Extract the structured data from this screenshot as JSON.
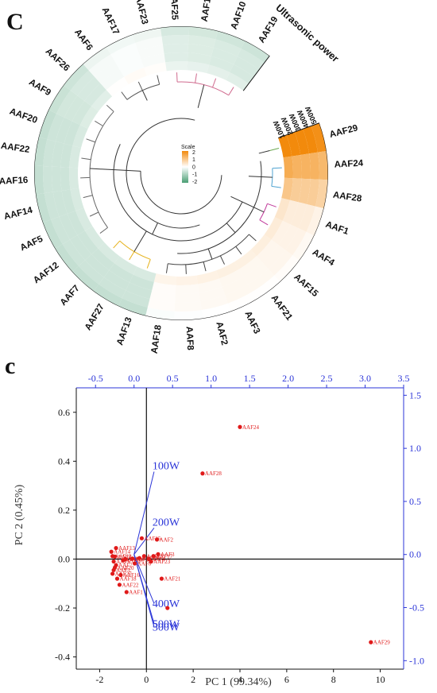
{
  "panel_top_letter": "C",
  "panel_bottom_letter": "c",
  "chart_data": [
    {
      "type": "heatmap",
      "layout": "circular",
      "title": "Ultrasonic power",
      "samples": [
        "AAF29",
        "AAF24",
        "AAF28",
        "AAF1",
        "AAF4",
        "AAF15",
        "AAF21",
        "AAF3",
        "AAF2",
        "AAF8",
        "AAF18",
        "AAF13",
        "AAF27",
        "AAF7",
        "AAF12",
        "AAF5",
        "AAF14",
        "AAF16",
        "AAF22",
        "AAF20",
        "AAF9",
        "AAF26",
        "AAF6",
        "AAF17",
        "AAF23",
        "AAF25",
        "AAF11",
        "AAF10",
        "AAF19"
      ],
      "rings": [
        "100W",
        "200W",
        "300W",
        "400W",
        "500W"
      ],
      "row_level": [
        2.0,
        1.3,
        0.85,
        0.3,
        0.2,
        0.15,
        0.12,
        0.12,
        0.1,
        0.08,
        0.05,
        -0.55,
        -0.55,
        -0.55,
        -0.55,
        -0.55,
        -0.55,
        -0.55,
        -0.55,
        -0.55,
        -0.5,
        -0.45,
        -0.1,
        -0.05,
        -0.08,
        -0.35,
        -0.38,
        -0.42,
        -0.45
      ],
      "scale": {
        "label": "Scale",
        "ticks": [
          "2",
          "1",
          "0",
          "-1",
          "-2"
        ],
        "min": -2,
        "max": 2,
        "low_color": "#4a9e73",
        "mid_color": "#ffffff",
        "high_color": "#f28a0c"
      },
      "cluster_colors": [
        "#6aa84f",
        "#4fa3d1",
        "#c0399a",
        "#e6b21a",
        "#d06a8e",
        "#555555"
      ]
    },
    {
      "type": "scatter",
      "subtype": "biplot",
      "xlabel": "PC 1 (99.34%)",
      "ylabel": "PC 2 (0.45%)",
      "xlim": [
        -3,
        11
      ],
      "ylim": [
        -0.45,
        0.7
      ],
      "x_ticks": [
        "-2",
        "0",
        "2",
        "4",
        "6",
        "8",
        "10"
      ],
      "y_ticks": [
        "-0.4",
        "-0.2",
        "0.0",
        "0.2",
        "0.4",
        "0.6"
      ],
      "x2lim": [
        -0.75,
        3.5
      ],
      "y2lim": [
        -1.08,
        1.57
      ],
      "x2_ticks": [
        "-0.5",
        "0.0",
        "0.5",
        "1.0",
        "1.5",
        "2.0",
        "2.5",
        "3.0",
        "3.5"
      ],
      "y2_ticks": [
        "-1.0",
        "-0.5",
        "0.0",
        "0.5",
        "1.0",
        "1.5"
      ],
      "points": [
        {
          "label": "AAF24",
          "x": 4.0,
          "y": 0.54
        },
        {
          "label": "AAF28",
          "x": 2.4,
          "y": 0.35
        },
        {
          "label": "AAF29",
          "x": 9.6,
          "y": -0.34
        },
        {
          "label": "AAF13",
          "x": -1.3,
          "y": 0.045
        },
        {
          "label": "AAF15",
          "x": -0.2,
          "y": 0.085
        },
        {
          "label": "AAF2",
          "x": 0.45,
          "y": 0.08
        },
        {
          "label": "AAF3",
          "x": 0.5,
          "y": 0.02
        },
        {
          "label": "AAF4",
          "x": 0.1,
          "y": 0.0
        },
        {
          "label": "AAF26",
          "x": -0.9,
          "y": 0.0
        },
        {
          "label": "AAF8",
          "x": -1.35,
          "y": 0.01
        },
        {
          "label": "AAF9",
          "x": -1.4,
          "y": -0.01
        },
        {
          "label": "AAF7",
          "x": -1.3,
          "y": -0.025
        },
        {
          "label": "AAF16",
          "x": -1.1,
          "y": -0.065
        },
        {
          "label": "AAF18",
          "x": -1.25,
          "y": -0.08
        },
        {
          "label": "AAF22",
          "x": -1.15,
          "y": -0.105
        },
        {
          "label": "AAF1",
          "x": -0.85,
          "y": -0.135
        },
        {
          "label": "AAF21",
          "x": 0.65,
          "y": -0.08
        },
        {
          "label": "AAF5",
          "x": -1.4,
          "y": -0.045
        },
        {
          "label": "AAF10",
          "x": -1.0,
          "y": -0.005
        },
        {
          "label": "AAF11",
          "x": -0.6,
          "y": 0.002
        },
        {
          "label": "AAF12",
          "x": -1.45,
          "y": 0.012
        },
        {
          "label": "AAF14",
          "x": -1.5,
          "y": 0.03
        },
        {
          "label": "AAF17",
          "x": 0.3,
          "y": 0.012
        },
        {
          "label": "AAF19",
          "x": -0.3,
          "y": 0.004
        },
        {
          "label": "AAF20",
          "x": -1.35,
          "y": -0.035
        },
        {
          "label": "AAF23",
          "x": 0.2,
          "y": -0.01
        },
        {
          "label": "AAF25",
          "x": -0.1,
          "y": 0.012
        },
        {
          "label": "AAF27",
          "x": -1.45,
          "y": -0.06
        },
        {
          "label": "AAF6",
          "x": -0.5,
          "y": -0.018
        },
        {
          "label": "AAF23b",
          "x": 0.9,
          "y": -0.2
        }
      ],
      "loadings": [
        {
          "label": "100W",
          "x": 0.26,
          "y": 0.78
        },
        {
          "label": "200W",
          "x": 0.26,
          "y": 0.25
        },
        {
          "label": "400W",
          "x": 0.26,
          "y": -0.46
        },
        {
          "label": "500W",
          "x": 0.26,
          "y": -0.65
        },
        {
          "label": "300W",
          "x": 0.26,
          "y": -0.68
        }
      ]
    }
  ]
}
